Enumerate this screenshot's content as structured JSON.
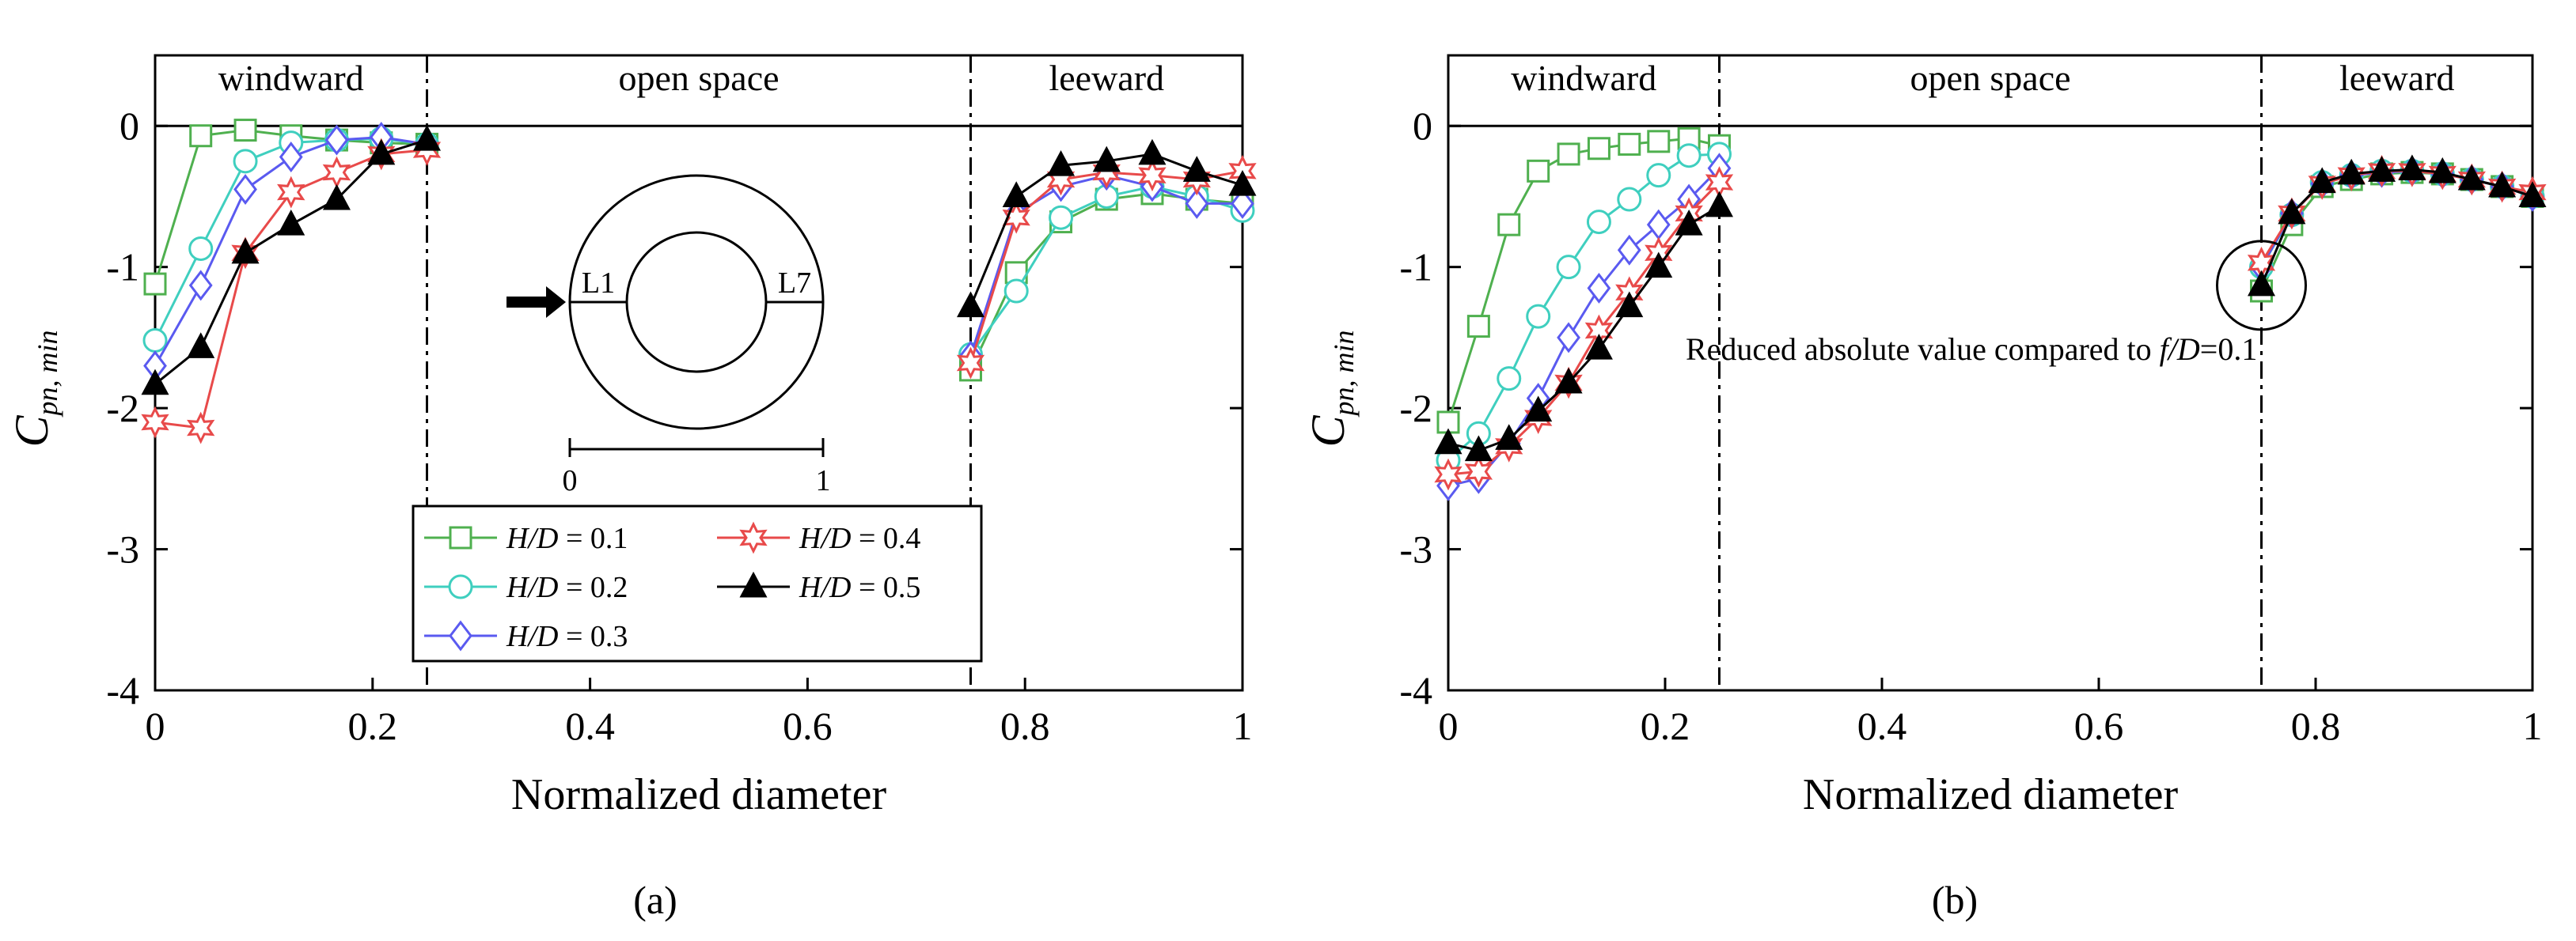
{
  "chart_data": [
    {
      "panel": "(a)",
      "type": "line",
      "xlabel": "Normalized diameter",
      "ylabel_main": "C",
      "ylabel_sub": "pn, min",
      "xlim": [
        0,
        1
      ],
      "ylim": [
        -4,
        0.5
      ],
      "xticks": [
        "0",
        "0.2",
        "0.4",
        "0.6",
        "0.8",
        "1"
      ],
      "xtick_values": [
        0,
        0.2,
        0.4,
        0.6,
        0.8,
        1
      ],
      "yticks": [
        "-4",
        "-3",
        "-2",
        "-1",
        "0"
      ],
      "ytick_values": [
        -4,
        -3,
        -2,
        -1,
        0
      ],
      "grid": false,
      "region_divider_y": 0,
      "dividers": [
        0.25,
        0.75
      ],
      "regions": [
        "windward",
        "open space",
        "leeward"
      ],
      "legend_placement": "bottom-center",
      "inset": {
        "left_label": "L1",
        "right_label": "L7",
        "scale_start": "0",
        "scale_end": "1"
      },
      "series": [
        {
          "name": "H/D = 0.1",
          "color": "#4fb04f",
          "marker": "square",
          "windward": {
            "x": [
              0,
              0.042,
              0.083,
              0.125,
              0.167,
              0.208,
              0.25
            ],
            "y": [
              -1.12,
              -0.07,
              -0.03,
              -0.07,
              -0.1,
              -0.12,
              -0.13
            ]
          },
          "leeward": {
            "x": [
              0.75,
              0.792,
              0.833,
              0.875,
              0.917,
              0.958,
              1
            ],
            "y": [
              -1.73,
              -1.04,
              -0.68,
              -0.52,
              -0.48,
              -0.52,
              -0.55
            ]
          }
        },
        {
          "name": "H/D = 0.2",
          "color": "#3fcfbf",
          "marker": "circle",
          "windward": {
            "x": [
              0,
              0.042,
              0.083,
              0.125,
              0.167,
              0.208,
              0.25
            ],
            "y": [
              -1.52,
              -0.87,
              -0.25,
              -0.12,
              -0.1,
              -0.09,
              -0.13
            ]
          },
          "leeward": {
            "x": [
              0.75,
              0.792,
              0.833,
              0.875,
              0.917,
              0.958,
              1
            ],
            "y": [
              -1.62,
              -1.17,
              -0.65,
              -0.5,
              -0.43,
              -0.5,
              -0.6
            ]
          }
        },
        {
          "name": "H/D = 0.3",
          "color": "#5a5af0",
          "marker": "diamond",
          "windward": {
            "x": [
              0,
              0.042,
              0.083,
              0.125,
              0.167,
              0.208,
              0.25
            ],
            "y": [
              -1.7,
              -1.13,
              -0.45,
              -0.22,
              -0.1,
              -0.08,
              -0.13
            ]
          },
          "leeward": {
            "x": [
              0.75,
              0.792,
              0.833,
              0.875,
              0.917,
              0.958,
              1
            ],
            "y": [
              -1.63,
              -0.62,
              -0.43,
              -0.35,
              -0.43,
              -0.55,
              -0.55
            ]
          }
        },
        {
          "name": "H/D = 0.4",
          "color": "#e84a4a",
          "marker": "star",
          "windward": {
            "x": [
              0,
              0.042,
              0.083,
              0.125,
              0.167,
              0.208,
              0.25
            ],
            "y": [
              -2.1,
              -2.14,
              -0.9,
              -0.47,
              -0.33,
              -0.2,
              -0.17
            ]
          },
          "leeward": {
            "x": [
              0.75,
              0.792,
              0.833,
              0.875,
              0.917,
              0.958,
              1
            ],
            "y": [
              -1.68,
              -0.65,
              -0.38,
              -0.33,
              -0.35,
              -0.38,
              -0.32
            ]
          }
        },
        {
          "name": "H/D = 0.5",
          "color": "#000000",
          "marker": "triangle",
          "windward": {
            "x": [
              0,
              0.042,
              0.083,
              0.125,
              0.167,
              0.208,
              0.25
            ],
            "y": [
              -1.83,
              -1.57,
              -0.9,
              -0.7,
              -0.52,
              -0.2,
              -0.1
            ]
          },
          "leeward": {
            "x": [
              0.75,
              0.792,
              0.833,
              0.875,
              0.917,
              0.958,
              1
            ],
            "y": [
              -1.28,
              -0.5,
              -0.28,
              -0.25,
              -0.2,
              -0.32,
              -0.42
            ]
          }
        }
      ]
    },
    {
      "panel": "(b)",
      "type": "line",
      "xlabel": "Normalized diameter",
      "ylabel_main": "C",
      "ylabel_sub": "pn, min",
      "xlim": [
        0,
        1
      ],
      "ylim": [
        -4,
        0.5
      ],
      "xticks": [
        "0",
        "0.2",
        "0.4",
        "0.6",
        "0.8",
        "1"
      ],
      "xtick_values": [
        0,
        0.2,
        0.4,
        0.6,
        0.8,
        1
      ],
      "yticks": [
        "-4",
        "-3",
        "-2",
        "-1",
        "0"
      ],
      "ytick_values": [
        -4,
        -3,
        -2,
        -1,
        0
      ],
      "grid": false,
      "region_divider_y": 0,
      "dividers": [
        0.25,
        0.75
      ],
      "regions": [
        "windward",
        "open space",
        "leeward"
      ],
      "annotation": {
        "text_prefix": "Reduced absolute value compared to ",
        "text_var": "f/D",
        "text_suffix": "=0.1",
        "x": 0.75,
        "y": -1.13
      },
      "series": [
        {
          "name": "H/D = 0.1",
          "color": "#4fb04f",
          "marker": "square",
          "windward": {
            "x": [
              0,
              0.028,
              0.056,
              0.083,
              0.111,
              0.139,
              0.167,
              0.194,
              0.222,
              0.25
            ],
            "y": [
              -2.1,
              -1.42,
              -0.7,
              -0.32,
              -0.2,
              -0.16,
              -0.13,
              -0.11,
              -0.09,
              -0.14
            ]
          },
          "leeward": {
            "x": [
              0.75,
              0.778,
              0.806,
              0.833,
              0.861,
              0.889,
              0.917,
              0.944,
              0.972,
              1
            ],
            "y": [
              -1.17,
              -0.7,
              -0.43,
              -0.38,
              -0.34,
              -0.33,
              -0.34,
              -0.38,
              -0.43,
              -0.5
            ]
          }
        },
        {
          "name": "H/D = 0.2",
          "color": "#3fcfbf",
          "marker": "circle",
          "windward": {
            "x": [
              0,
              0.028,
              0.056,
              0.083,
              0.111,
              0.139,
              0.167,
              0.194,
              0.222,
              0.25
            ],
            "y": [
              -2.37,
              -2.18,
              -1.79,
              -1.35,
              -1.0,
              -0.68,
              -0.52,
              -0.35,
              -0.21,
              -0.2
            ]
          },
          "leeward": {
            "x": [
              0.75,
              0.778,
              0.806,
              0.833,
              0.861,
              0.889,
              0.917,
              0.944,
              0.972,
              1
            ],
            "y": [
              -1.0,
              -0.63,
              -0.4,
              -0.35,
              -0.32,
              -0.32,
              -0.34,
              -0.38,
              -0.43,
              -0.5
            ]
          }
        },
        {
          "name": "H/D = 0.3",
          "color": "#5a5af0",
          "marker": "diamond",
          "windward": {
            "x": [
              0,
              0.028,
              0.056,
              0.083,
              0.111,
              0.139,
              0.167,
              0.194,
              0.222,
              0.25
            ],
            "y": [
              -2.55,
              -2.5,
              -2.25,
              -1.93,
              -1.5,
              -1.15,
              -0.88,
              -0.7,
              -0.52,
              -0.3
            ]
          },
          "leeward": {
            "x": [
              0.75,
              0.778,
              0.806,
              0.833,
              0.861,
              0.889,
              0.917,
              0.944,
              0.972,
              1
            ],
            "y": [
              -1.0,
              -0.62,
              -0.41,
              -0.35,
              -0.33,
              -0.32,
              -0.34,
              -0.38,
              -0.43,
              -0.5
            ]
          }
        },
        {
          "name": "H/D = 0.4",
          "color": "#e84a4a",
          "marker": "star",
          "windward": {
            "x": [
              0,
              0.028,
              0.056,
              0.083,
              0.111,
              0.139,
              0.167,
              0.194,
              0.222,
              0.25
            ],
            "y": [
              -2.47,
              -2.45,
              -2.27,
              -2.07,
              -1.82,
              -1.45,
              -1.18,
              -0.9,
              -0.62,
              -0.4
            ]
          },
          "leeward": {
            "x": [
              0.75,
              0.778,
              0.806,
              0.833,
              0.861,
              0.889,
              0.917,
              0.944,
              0.972,
              1
            ],
            "y": [
              -0.97,
              -0.62,
              -0.41,
              -0.35,
              -0.32,
              -0.32,
              -0.34,
              -0.38,
              -0.43,
              -0.47
            ]
          }
        },
        {
          "name": "H/D = 0.5",
          "color": "#000000",
          "marker": "triangle",
          "windward": {
            "x": [
              0,
              0.028,
              0.056,
              0.083,
              0.111,
              0.139,
              0.167,
              0.194,
              0.222,
              0.25
            ],
            "y": [
              -2.25,
              -2.3,
              -2.22,
              -2.02,
              -1.82,
              -1.58,
              -1.28,
              -1.0,
              -0.7,
              -0.57
            ]
          },
          "leeward": {
            "x": [
              0.75,
              0.778,
              0.806,
              0.833,
              0.861,
              0.889,
              0.917,
              0.944,
              0.972,
              1
            ],
            "y": [
              -1.13,
              -0.62,
              -0.4,
              -0.34,
              -0.32,
              -0.31,
              -0.33,
              -0.38,
              -0.43,
              -0.5
            ]
          }
        }
      ]
    }
  ]
}
